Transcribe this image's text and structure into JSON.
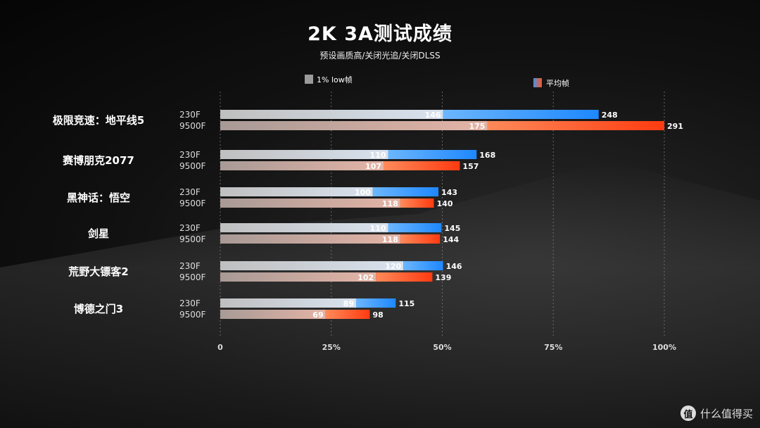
{
  "title": "2K 3A测试成绩",
  "subtitle": "预设画质高/关闭光追/关闭DLSS",
  "watermark": {
    "icon": "值",
    "text": "什么值得买"
  },
  "chart_data": {
    "type": "bar",
    "orientation": "horizontal",
    "title": "2K 3A测试成绩",
    "subtitle": "预设画质高/关闭光追/关闭DLSS",
    "legend": [
      {
        "name": "1% low帧",
        "color": "#9a9a9a"
      },
      {
        "name": "平均帧",
        "color": "#e8552e"
      }
    ],
    "x_ticks": [
      "0",
      "25%",
      "50%",
      "75%",
      "100%"
    ],
    "xlim": [
      0,
      291
    ],
    "grid": true,
    "series_names": [
      "230F",
      "9500F"
    ],
    "colors": {
      "230F_low": "#c8c8c8",
      "230F_avg": "#1e88ff",
      "9500F_low": "#c8a8a0",
      "9500F_avg": "#ff3b10"
    },
    "games": [
      {
        "name": "极限竞速：地平线5",
        "rows": [
          {
            "cpu": "230F",
            "low": 146,
            "avg": 248
          },
          {
            "cpu": "9500F",
            "low": 175,
            "avg": 291
          }
        ]
      },
      {
        "name": "赛博朋克2077",
        "rows": [
          {
            "cpu": "230F",
            "low": 110,
            "avg": 168
          },
          {
            "cpu": "9500F",
            "low": 107,
            "avg": 157
          }
        ]
      },
      {
        "name": "黑神话：悟空",
        "rows": [
          {
            "cpu": "230F",
            "low": 100,
            "avg": 143
          },
          {
            "cpu": "9500F",
            "low": 118,
            "avg": 140
          }
        ]
      },
      {
        "name": "剑星",
        "rows": [
          {
            "cpu": "230F",
            "low": 110,
            "avg": 145
          },
          {
            "cpu": "9500F",
            "low": 118,
            "avg": 144
          }
        ]
      },
      {
        "name": "荒野大镖客2",
        "rows": [
          {
            "cpu": "230F",
            "low": 120,
            "avg": 146
          },
          {
            "cpu": "9500F",
            "low": 102,
            "avg": 139
          }
        ]
      },
      {
        "name": "博德之门3",
        "rows": [
          {
            "cpu": "230F",
            "low": 89,
            "avg": 115
          },
          {
            "cpu": "9500F",
            "low": 69,
            "avg": 98
          }
        ]
      }
    ]
  }
}
